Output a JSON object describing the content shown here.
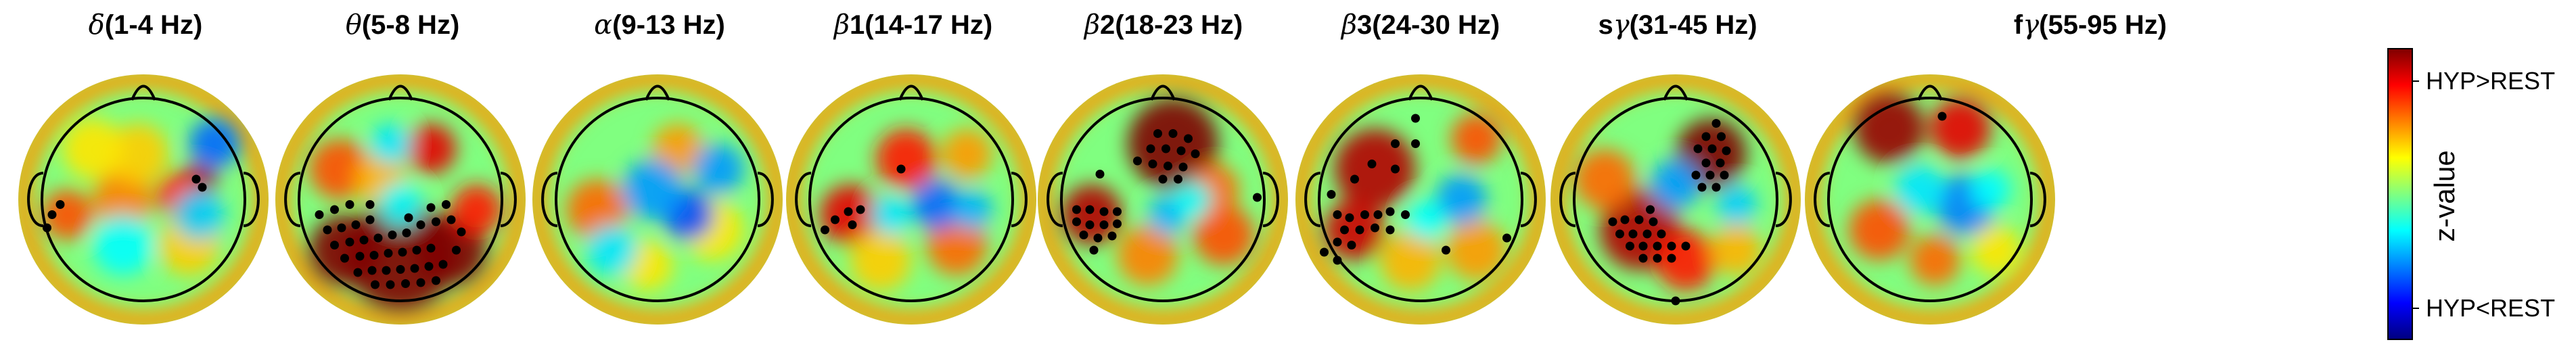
{
  "figure": {
    "maps": [
      {
        "greek": "δ",
        "rest": "(1-4 Hz)",
        "blobs": [
          [
            0.55,
            -0.18,
            0.18,
            0.95
          ],
          [
            0.35,
            -0.05,
            0.22,
            0.7
          ],
          [
            -0.2,
            0.0,
            0.3,
            0.5
          ],
          [
            -0.75,
            0.15,
            0.25,
            0.6
          ],
          [
            -0.05,
            -0.45,
            0.3,
            0.35
          ],
          [
            0.45,
            0.45,
            0.3,
            0.35
          ],
          [
            -0.5,
            -0.5,
            0.3,
            0.3
          ],
          [
            0.7,
            -0.55,
            0.25,
            -0.55
          ],
          [
            0.55,
            0.15,
            0.25,
            -0.35
          ],
          [
            -0.2,
            0.45,
            0.3,
            -0.25
          ]
        ],
        "dots": [
          [
            0.52,
            -0.2
          ],
          [
            0.58,
            -0.12
          ],
          [
            -0.9,
            0.15
          ],
          [
            -0.82,
            0.05
          ],
          [
            -0.95,
            0.28
          ]
        ]
      },
      {
        "greek": "θ",
        "rest": "(5-8 Hz)",
        "blobs": [
          [
            0.0,
            0.55,
            0.55,
            1.2
          ],
          [
            -0.55,
            0.5,
            0.35,
            1.0
          ],
          [
            0.5,
            0.5,
            0.35,
            1.0
          ],
          [
            0.3,
            -0.5,
            0.25,
            0.8
          ],
          [
            -0.6,
            -0.3,
            0.3,
            0.6
          ],
          [
            0.75,
            0.1,
            0.25,
            0.7
          ],
          [
            -0.2,
            -0.2,
            0.25,
            0.4
          ],
          [
            -0.1,
            -0.55,
            0.2,
            -0.3
          ],
          [
            0.0,
            0.05,
            0.22,
            -0.25
          ]
        ],
        "dots": [
          [
            -0.8,
            0.15
          ],
          [
            -0.65,
            0.1
          ],
          [
            -0.5,
            0.05
          ],
          [
            -0.72,
            0.3
          ],
          [
            -0.58,
            0.28
          ],
          [
            -0.44,
            0.25
          ],
          [
            -0.3,
            0.2
          ],
          [
            -0.65,
            0.45
          ],
          [
            -0.5,
            0.42
          ],
          [
            -0.36,
            0.4
          ],
          [
            -0.22,
            0.38
          ],
          [
            -0.08,
            0.35
          ],
          [
            0.06,
            0.33
          ],
          [
            -0.55,
            0.58
          ],
          [
            -0.4,
            0.56
          ],
          [
            -0.26,
            0.55
          ],
          [
            -0.12,
            0.53
          ],
          [
            0.02,
            0.52
          ],
          [
            0.16,
            0.5
          ],
          [
            0.3,
            0.48
          ],
          [
            -0.42,
            0.72
          ],
          [
            -0.28,
            0.7
          ],
          [
            -0.14,
            0.7
          ],
          [
            0.0,
            0.69
          ],
          [
            0.14,
            0.68
          ],
          [
            0.28,
            0.66
          ],
          [
            0.42,
            0.64
          ],
          [
            -0.25,
            0.84
          ],
          [
            -0.1,
            0.84
          ],
          [
            0.05,
            0.83
          ],
          [
            0.2,
            0.82
          ],
          [
            0.35,
            0.8
          ],
          [
            0.2,
            0.25
          ],
          [
            0.35,
            0.22
          ],
          [
            0.5,
            0.2
          ],
          [
            0.3,
            0.08
          ],
          [
            0.45,
            0.05
          ],
          [
            0.6,
            0.32
          ],
          [
            0.55,
            0.5
          ],
          [
            -0.3,
            0.05
          ],
          [
            0.08,
            0.18
          ]
        ]
      },
      {
        "greek": "α",
        "rest": "(9-13 Hz)",
        "blobs": [
          [
            -0.6,
            0.1,
            0.3,
            0.55
          ],
          [
            0.2,
            -0.5,
            0.25,
            0.45
          ],
          [
            0.55,
            0.3,
            0.3,
            0.3
          ],
          [
            -0.1,
            0.65,
            0.25,
            0.3
          ],
          [
            0.3,
            0.15,
            0.25,
            -0.6
          ],
          [
            -0.05,
            -0.1,
            0.3,
            -0.45
          ],
          [
            0.6,
            -0.3,
            0.25,
            -0.45
          ],
          [
            -0.45,
            0.5,
            0.25,
            -0.3
          ]
        ],
        "dots": []
      },
      {
        "greek": "β",
        "rest": "1(14-17 Hz)",
        "blobs": [
          [
            -0.6,
            0.15,
            0.3,
            0.8
          ],
          [
            -0.05,
            -0.4,
            0.3,
            0.7
          ],
          [
            0.45,
            0.45,
            0.3,
            0.55
          ],
          [
            0.55,
            -0.45,
            0.25,
            0.45
          ],
          [
            -0.3,
            0.6,
            0.3,
            0.35
          ],
          [
            0.25,
            0.05,
            0.25,
            -0.55
          ],
          [
            0.6,
            0.1,
            0.2,
            -0.4
          ],
          [
            -0.2,
            0.15,
            0.2,
            -0.3
          ]
        ],
        "dots": [
          [
            -0.62,
            0.12
          ],
          [
            -0.5,
            0.1
          ],
          [
            -0.75,
            0.2
          ],
          [
            -0.58,
            0.25
          ],
          [
            -0.85,
            0.3
          ],
          [
            -0.1,
            -0.3
          ]
        ]
      },
      {
        "greek": "β",
        "rest": "2(18-23 Hz)",
        "blobs": [
          [
            0.1,
            -0.55,
            0.45,
            1.0
          ],
          [
            -0.7,
            0.15,
            0.3,
            0.9
          ],
          [
            0.6,
            0.35,
            0.3,
            0.6
          ],
          [
            -0.15,
            0.55,
            0.3,
            0.5
          ],
          [
            0.5,
            -0.1,
            0.25,
            0.55
          ],
          [
            0.05,
            0.15,
            0.2,
            -0.4
          ],
          [
            0.3,
            0.0,
            0.18,
            -0.25
          ]
        ],
        "dots": [
          [
            -0.05,
            -0.65
          ],
          [
            0.1,
            -0.65
          ],
          [
            0.25,
            -0.6
          ],
          [
            -0.12,
            -0.5
          ],
          [
            0.03,
            -0.5
          ],
          [
            0.18,
            -0.48
          ],
          [
            0.32,
            -0.45
          ],
          [
            -0.25,
            -0.38
          ],
          [
            -0.1,
            -0.35
          ],
          [
            0.05,
            -0.33
          ],
          [
            0.2,
            -0.32
          ],
          [
            0.15,
            -0.2
          ],
          [
            0.0,
            -0.2
          ],
          [
            -0.85,
            0.1
          ],
          [
            -0.72,
            0.1
          ],
          [
            -0.58,
            0.12
          ],
          [
            -0.45,
            0.12
          ],
          [
            -0.85,
            0.22
          ],
          [
            -0.72,
            0.25
          ],
          [
            -0.58,
            0.25
          ],
          [
            -0.45,
            0.24
          ],
          [
            -0.78,
            0.35
          ],
          [
            -0.64,
            0.38
          ],
          [
            -0.5,
            0.36
          ],
          [
            -0.68,
            0.5
          ],
          [
            -0.62,
            -0.25
          ],
          [
            0.93,
            -0.02
          ]
        ]
      },
      {
        "greek": "β",
        "rest": "3(24-30 Hz)",
        "blobs": [
          [
            -0.45,
            -0.3,
            0.4,
            0.9
          ],
          [
            -0.65,
            0.3,
            0.3,
            0.85
          ],
          [
            0.55,
            -0.6,
            0.25,
            0.6
          ],
          [
            0.55,
            0.5,
            0.3,
            0.45
          ],
          [
            -0.1,
            0.6,
            0.3,
            0.4
          ],
          [
            0.4,
            0.0,
            0.25,
            -0.45
          ],
          [
            0.05,
            0.2,
            0.2,
            -0.25
          ]
        ],
        "dots": [
          [
            -0.05,
            -0.8
          ],
          [
            -0.25,
            -0.55
          ],
          [
            -0.05,
            -0.55
          ],
          [
            -0.48,
            -0.35
          ],
          [
            -0.25,
            -0.3
          ],
          [
            -0.65,
            -0.2
          ],
          [
            -0.82,
            0.15
          ],
          [
            -0.7,
            0.18
          ],
          [
            -0.55,
            0.15
          ],
          [
            -0.42,
            0.15
          ],
          [
            -0.3,
            0.12
          ],
          [
            -0.75,
            0.3
          ],
          [
            -0.6,
            0.3
          ],
          [
            -0.45,
            0.28
          ],
          [
            -0.3,
            0.3
          ],
          [
            -0.82,
            0.42
          ],
          [
            -0.68,
            0.45
          ],
          [
            -0.82,
            0.6
          ],
          [
            -0.95,
            0.52
          ],
          [
            -0.88,
            -0.05
          ],
          [
            -0.15,
            0.15
          ],
          [
            0.25,
            0.5
          ],
          [
            0.85,
            0.38
          ]
        ]
      },
      {
        "greek": "γ",
        "prefix": "s",
        "rest": "(31-45 Hz)",
        "blobs": [
          [
            0.35,
            -0.45,
            0.35,
            1.0
          ],
          [
            -0.35,
            0.3,
            0.4,
            0.9
          ],
          [
            0.1,
            0.6,
            0.3,
            0.7
          ],
          [
            -0.7,
            -0.2,
            0.3,
            0.55
          ],
          [
            0.6,
            0.5,
            0.25,
            0.4
          ],
          [
            0.0,
            -0.15,
            0.25,
            -0.45
          ],
          [
            0.6,
            0.05,
            0.2,
            -0.35
          ]
        ],
        "dots": [
          [
            0.4,
            -0.75
          ],
          [
            0.3,
            -0.62
          ],
          [
            0.45,
            -0.62
          ],
          [
            0.22,
            -0.5
          ],
          [
            0.36,
            -0.5
          ],
          [
            0.5,
            -0.48
          ],
          [
            0.3,
            -0.36
          ],
          [
            0.44,
            -0.36
          ],
          [
            0.2,
            -0.24
          ],
          [
            0.34,
            -0.24
          ],
          [
            0.48,
            -0.24
          ],
          [
            0.26,
            -0.12
          ],
          [
            0.4,
            -0.12
          ],
          [
            -0.62,
            0.22
          ],
          [
            -0.5,
            0.2
          ],
          [
            -0.36,
            0.2
          ],
          [
            -0.22,
            0.22
          ],
          [
            -0.55,
            0.34
          ],
          [
            -0.42,
            0.34
          ],
          [
            -0.28,
            0.34
          ],
          [
            -0.14,
            0.34
          ],
          [
            -0.45,
            0.46
          ],
          [
            -0.32,
            0.46
          ],
          [
            -0.18,
            0.46
          ],
          [
            -0.04,
            0.46
          ],
          [
            -0.32,
            0.58
          ],
          [
            -0.18,
            0.58
          ],
          [
            -0.04,
            0.58
          ],
          [
            0.1,
            0.46
          ],
          [
            0.0,
            1.0
          ],
          [
            -0.25,
            0.1
          ]
        ]
      },
      {
        "greek": "γ",
        "prefix": "f",
        "rest": "(55-95 Hz)",
        "blobs": [
          [
            -0.4,
            -0.7,
            0.35,
            0.95
          ],
          [
            0.3,
            -0.7,
            0.3,
            0.8
          ],
          [
            -0.5,
            0.3,
            0.3,
            0.6
          ],
          [
            0.05,
            0.6,
            0.25,
            0.55
          ],
          [
            0.65,
            0.5,
            0.25,
            0.3
          ],
          [
            0.35,
            0.05,
            0.3,
            -0.5
          ],
          [
            -0.1,
            -0.1,
            0.25,
            -0.3
          ],
          [
            0.6,
            -0.1,
            0.2,
            -0.25
          ]
        ],
        "dots": [
          [
            0.12,
            -0.82
          ]
        ]
      }
    ],
    "colorbar": {
      "top_label": "HYP>REST",
      "bottom_label": "HYP<REST",
      "title": "z-value",
      "stops": [
        "#7f0000",
        "#ff0000",
        "#ff8000",
        "#ffff00",
        "#80ff80",
        "#00ffff",
        "#0080ff",
        "#0000ff",
        "#00007f"
      ]
    }
  }
}
